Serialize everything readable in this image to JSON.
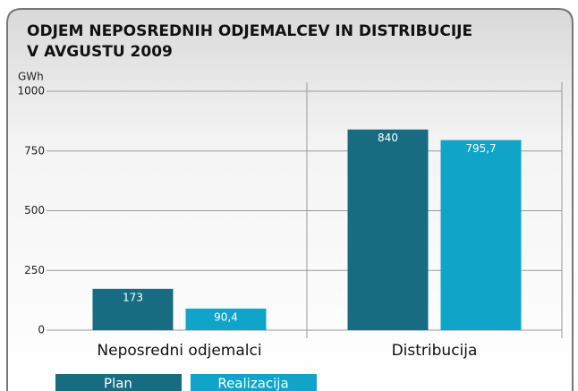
{
  "chart_data": {
    "type": "bar",
    "title": [
      "ODJEM NEPOSREDNIH ODJEMALCEV IN DISTRIBUCIJE",
      "V AVGUSTU 2009"
    ],
    "y_label": "GWh",
    "categories": [
      "Neposredni odjemalci",
      "Distribucija"
    ],
    "series": [
      {
        "name": "Plan",
        "color": "#176c82",
        "values": [
          173,
          840
        ]
      },
      {
        "name": "Realizacija",
        "color": "#10a4c9",
        "values": [
          90.4,
          795.7
        ],
        "value_labels": [
          "90,4",
          "795,7"
        ]
      }
    ],
    "ylim": [
      0,
      1000
    ],
    "yticks": [
      0,
      250,
      500,
      750,
      1000
    ],
    "grid": true
  }
}
